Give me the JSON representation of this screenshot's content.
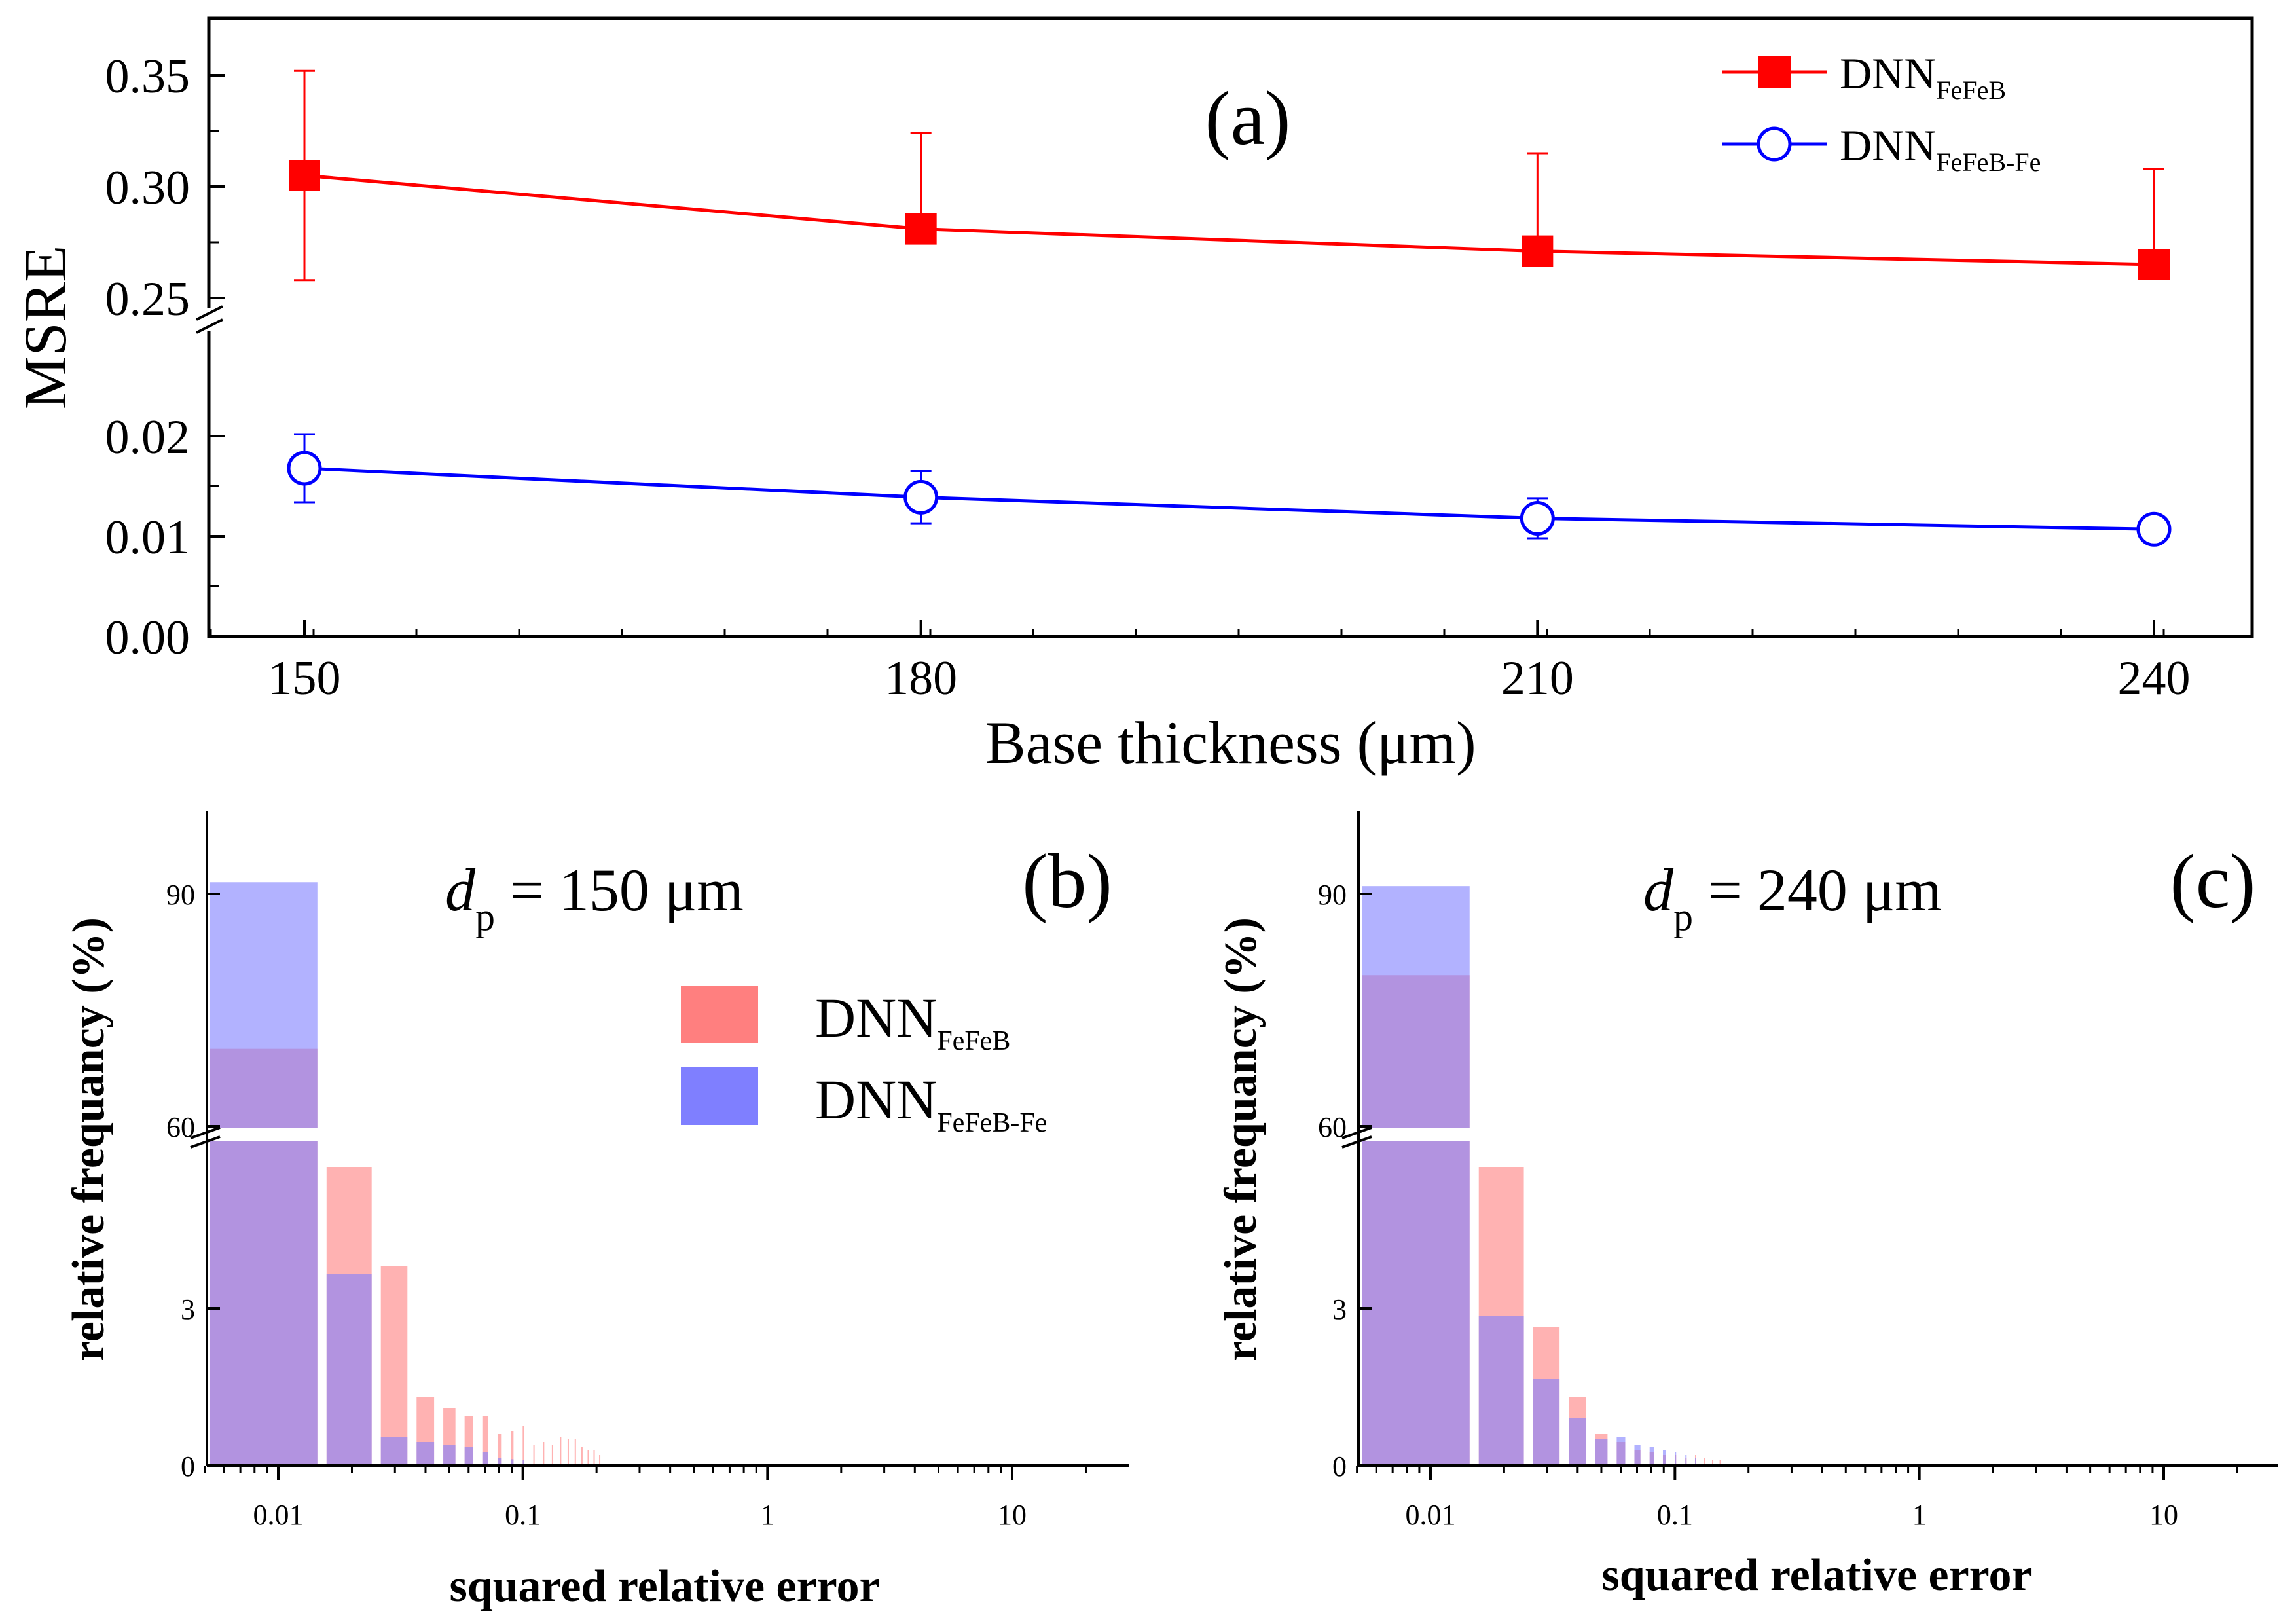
{
  "chart_data": [
    {
      "panel": "(a)",
      "type": "line",
      "xlabel": "Base thickness (μm)",
      "ylabel": "MSRE",
      "x": [
        150,
        180,
        210,
        240
      ],
      "x_ticks": [
        "150",
        "180",
        "210",
        "240"
      ],
      "xlim": [
        145,
        243
      ],
      "y_broken": true,
      "y_lower_range": [
        0,
        0.02
      ],
      "y_upper_range": [
        0.245,
        0.37
      ],
      "y_ticks": [
        "0.00",
        "0.01",
        "0.02",
        "0.25",
        "0.30",
        "0.35"
      ],
      "legend_position": "top-right",
      "series": [
        {
          "name": "DNN",
          "name_sub": "FeFeB",
          "marker": "filled-square",
          "color": "#ff0000",
          "values": [
            0.305,
            0.281,
            0.271,
            0.265
          ],
          "error_up": [
            0.047,
            0.043,
            0.044,
            0.043
          ],
          "error_down": [
            0.047,
            0.0,
            0.0,
            0.0
          ]
        },
        {
          "name": "DNN",
          "name_sub": "FeFeB-Fe",
          "marker": "open-circle",
          "color": "#0000ff",
          "values": [
            0.0168,
            0.0139,
            0.0118,
            0.0107
          ],
          "error_up": [
            0.0034,
            0.0026,
            0.002,
            0.0012
          ],
          "error_down": [
            0.0034,
            0.0026,
            0.002,
            0.0012
          ]
        }
      ]
    },
    {
      "panel": "(b)",
      "type": "bar",
      "annotation_main": "d",
      "annotation_sub": "p",
      "annotation_rest": " = 150 μm",
      "xlabel": "squared relative error",
      "ylabel": "relative frequancy (%)",
      "x_scale": "log",
      "x_ticks": [
        "0.01",
        "0.1",
        "1",
        "10"
      ],
      "y_broken": true,
      "y_ticks": [
        "0",
        "3",
        "60",
        "90"
      ],
      "legend_position": "center-right",
      "series": [
        {
          "name": "DNN",
          "name_sub": "FeFeB",
          "color": "#ff7f7f",
          "bins": [
            0.01,
            0.02,
            0.03,
            0.04,
            0.05,
            0.06,
            0.07,
            0.08,
            0.09,
            0.1,
            0.11,
            0.12,
            0.13,
            0.14,
            0.15,
            0.16,
            0.17,
            0.18,
            0.19,
            0.2
          ],
          "values": [
            70,
            5.7,
            3.8,
            1.3,
            1.1,
            0.95,
            0.95,
            0.6,
            0.65,
            0.75,
            0.4,
            0.45,
            0.4,
            0.55,
            0.5,
            0.5,
            0.35,
            0.3,
            0.3,
            0.2
          ]
        },
        {
          "name": "DNN",
          "name_sub": "FeFeB-Fe",
          "color": "#7f7fff",
          "bins": [
            0.01,
            0.02,
            0.03,
            0.04,
            0.05,
            0.06,
            0.07,
            0.08,
            0.09,
            0.1
          ],
          "values": [
            91.5,
            3.65,
            0.55,
            0.45,
            0.4,
            0.35,
            0.25,
            0.15,
            0.12,
            0.1
          ]
        }
      ]
    },
    {
      "panel": "(c)",
      "type": "bar",
      "annotation_main": "d",
      "annotation_sub": "p",
      "annotation_rest": " = 240 μm",
      "xlabel": "squared relative error",
      "ylabel": "relative frequancy (%)",
      "x_scale": "log",
      "x_ticks": [
        "0.01",
        "0.1",
        "1",
        "10"
      ],
      "y_broken": true,
      "y_ticks": [
        "0",
        "3",
        "60",
        "90"
      ],
      "series": [
        {
          "name": "DNN",
          "name_sub": "FeFeB",
          "color": "#ff7f7f",
          "bins": [
            0.01,
            0.02,
            0.03,
            0.04,
            0.05,
            0.06,
            0.07,
            0.08,
            0.09,
            0.1,
            0.11,
            0.12,
            0.13,
            0.14,
            0.15
          ],
          "values": [
            79.5,
            5.7,
            2.65,
            1.3,
            0.6,
            0.45,
            0.3,
            0.25,
            0.2,
            0.2,
            0.15,
            0.2,
            0.15,
            0.1,
            0.1
          ]
        },
        {
          "name": "DNN",
          "name_sub": "FeFeB-Fe",
          "color": "#7f7fff",
          "bins": [
            0.01,
            0.02,
            0.03,
            0.04,
            0.05,
            0.06,
            0.07,
            0.08,
            0.09,
            0.1,
            0.11,
            0.12
          ],
          "values": [
            91,
            2.85,
            1.65,
            0.9,
            0.5,
            0.55,
            0.4,
            0.35,
            0.3,
            0.25,
            0.2,
            0.15
          ]
        }
      ]
    }
  ]
}
